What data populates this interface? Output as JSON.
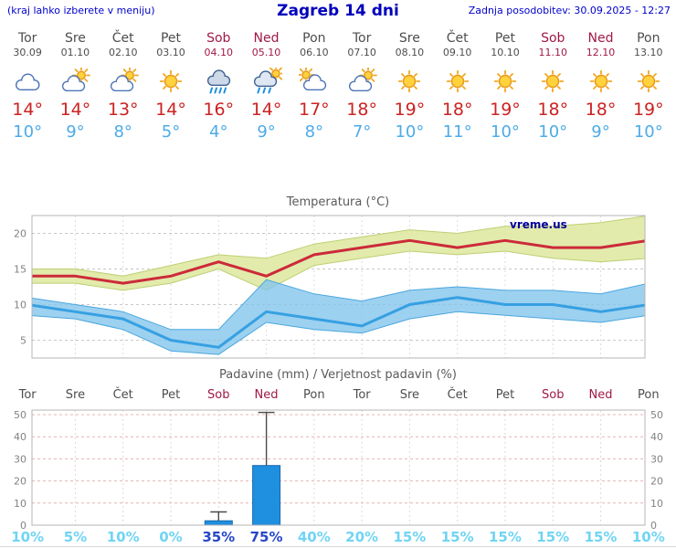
{
  "header": {
    "left_note": "(kraj lahko izberete v meniju)",
    "title": "Zagreb 14 dni",
    "last_update": "Zadnja posodobitev: 30.09.2025 - 12:27"
  },
  "colors": {
    "header_blue": "#0000cc",
    "weekday_gray": "#4d4d4d",
    "weekend_red": "#a01945",
    "max_temp_red": "#cc2222",
    "min_temp_blue": "#4dabe8",
    "bar_blue": "#1f8fe0",
    "prob_light_cyan": "#70d4f4",
    "prob_dark_blue": "#2746c8",
    "band_yellow": "#e0eaa6",
    "band_blue": "#84c6ec"
  },
  "days": [
    {
      "name": "Tor",
      "date": "30.09",
      "weekend": false,
      "icon": "cloudy-icon",
      "tmax": "14°",
      "tmin": "10°"
    },
    {
      "name": "Sre",
      "date": "01.10",
      "weekend": false,
      "icon": "partly-cloudy-icon",
      "tmax": "14°",
      "tmin": "9°"
    },
    {
      "name": "Čet",
      "date": "02.10",
      "weekend": false,
      "icon": "partly-cloudy-icon",
      "tmax": "13°",
      "tmin": "8°"
    },
    {
      "name": "Pet",
      "date": "03.10",
      "weekend": false,
      "icon": "sunny-icon",
      "tmax": "14°",
      "tmin": "5°"
    },
    {
      "name": "Sob",
      "date": "04.10",
      "weekend": true,
      "icon": "rain-icon",
      "tmax": "16°",
      "tmin": "4°"
    },
    {
      "name": "Ned",
      "date": "05.10",
      "weekend": true,
      "icon": "rain-showers-icon",
      "tmax": "14°",
      "tmin": "9°"
    },
    {
      "name": "Pon",
      "date": "06.10",
      "weekend": false,
      "icon": "mostly-cloudy-icon",
      "tmax": "17°",
      "tmin": "8°"
    },
    {
      "name": "Tor",
      "date": "07.10",
      "weekend": false,
      "icon": "partly-cloudy-icon",
      "tmax": "18°",
      "tmin": "7°"
    },
    {
      "name": "Sre",
      "date": "08.10",
      "weekend": false,
      "icon": "sunny-icon",
      "tmax": "19°",
      "tmin": "10°"
    },
    {
      "name": "Čet",
      "date": "09.10",
      "weekend": false,
      "icon": "sunny-icon",
      "tmax": "18°",
      "tmin": "11°"
    },
    {
      "name": "Pet",
      "date": "10.10",
      "weekend": false,
      "icon": "sunny-icon",
      "tmax": "19°",
      "tmin": "10°"
    },
    {
      "name": "Sob",
      "date": "11.10",
      "weekend": true,
      "icon": "sunny-icon",
      "tmax": "18°",
      "tmin": "10°"
    },
    {
      "name": "Ned",
      "date": "12.10",
      "weekend": true,
      "icon": "sunny-icon",
      "tmax": "18°",
      "tmin": "9°"
    },
    {
      "name": "Pon",
      "date": "13.10",
      "weekend": false,
      "icon": "sunny-icon",
      "tmax": "19°",
      "tmin": "10°"
    }
  ],
  "chart_data": [
    {
      "type": "line",
      "title": "Temperatura (°C)",
      "x_labels": [
        "Tor",
        "Sre",
        "Čet",
        "Pet",
        "Sob",
        "Ned",
        "Pon",
        "Tor",
        "Sre",
        "Čet",
        "Pet",
        "Sob",
        "Ned",
        "Pon"
      ],
      "ylim": [
        2.5,
        22.5
      ],
      "yticks": [
        5,
        10,
        15,
        20
      ],
      "grid": true,
      "legend": "none",
      "watermark": "vreme.us",
      "series": [
        {
          "name": "max-temp",
          "color": "#cc2a3a",
          "values": [
            14,
            14,
            13,
            14,
            16,
            14,
            17,
            18,
            19,
            18,
            19,
            18,
            18,
            19
          ]
        },
        {
          "name": "max-temp-range-upper",
          "color": "#becf72",
          "values": [
            15,
            15,
            14,
            15.5,
            17,
            16.5,
            18.5,
            19.5,
            20.5,
            20,
            21,
            21,
            21.5,
            22.5
          ]
        },
        {
          "name": "max-temp-range-lower",
          "color": "#becf72",
          "values": [
            13,
            13,
            12,
            13,
            15,
            12,
            15.5,
            16.5,
            17.5,
            17,
            17.5,
            16.5,
            16,
            16.5
          ]
        },
        {
          "name": "min-temp",
          "color": "#36a0e2",
          "values": [
            10,
            9,
            8,
            5,
            4,
            9,
            8,
            7,
            10,
            11,
            10,
            10,
            9,
            10
          ]
        },
        {
          "name": "min-temp-range-upper",
          "color": "#4aa6de",
          "values": [
            11,
            10,
            9,
            6.5,
            6.5,
            13.5,
            11.5,
            10.5,
            12,
            12.5,
            12,
            12,
            11.5,
            13
          ]
        },
        {
          "name": "min-temp-range-lower",
          "color": "#4aa6de",
          "values": [
            8.5,
            8,
            6.5,
            3.5,
            3,
            7.5,
            6.5,
            6,
            8,
            9,
            8.5,
            8,
            7.5,
            8.5
          ]
        }
      ]
    },
    {
      "type": "bar",
      "title": "Padavine (mm) / Verjetnost padavin (%)",
      "x_labels": [
        "Tor",
        "Sre",
        "Čet",
        "Pet",
        "Sob",
        "Ned",
        "Pon",
        "Tor",
        "Sre",
        "Čet",
        "Pet",
        "Sob",
        "Ned",
        "Pon"
      ],
      "ylim": [
        0,
        52
      ],
      "yticks": [
        0,
        10,
        20,
        30,
        40,
        50
      ],
      "grid": true,
      "values": [
        0,
        0,
        0,
        0,
        2,
        27,
        0,
        0,
        0,
        0,
        0,
        0,
        0,
        0
      ],
      "whisker_max": [
        0,
        0,
        0,
        0,
        6,
        51,
        0,
        0,
        0,
        0,
        0,
        0,
        0,
        0
      ],
      "prob_labels": [
        "10%",
        "5%",
        "10%",
        "0%",
        "35%",
        "75%",
        "40%",
        "20%",
        "15%",
        "15%",
        "15%",
        "15%",
        "15%",
        "10%"
      ],
      "prob_emphasis": [
        4,
        5
      ]
    }
  ]
}
